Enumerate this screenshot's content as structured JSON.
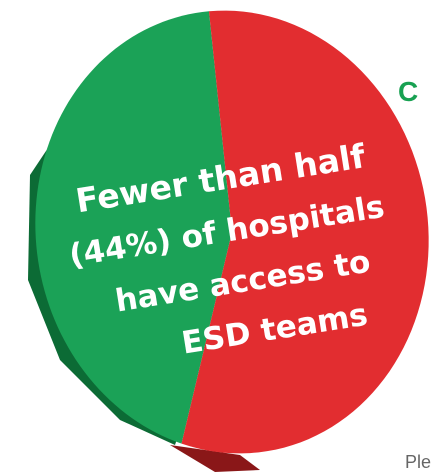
{
  "colors": {
    "green": "#1ba257",
    "green_dark": "#0c6b35",
    "red": "#e22d30",
    "red_dark": "#8a1718",
    "text": "#ffffff",
    "accent_green": "#18a152",
    "muted_text": "#666666"
  },
  "side_text": {
    "letter": "C",
    "footer_fragment": "Ple"
  },
  "chart_data": {
    "type": "pie",
    "slices": [
      {
        "label": "",
        "value": 44,
        "color": "#1ba257"
      },
      {
        "label": "",
        "value": 56,
        "color": "#e22d30"
      }
    ],
    "annotation_lines": [
      "Fewer than half",
      "(44%) of hospitals",
      "have access to",
      "ESD teams"
    ],
    "title": "",
    "legend": "none"
  }
}
